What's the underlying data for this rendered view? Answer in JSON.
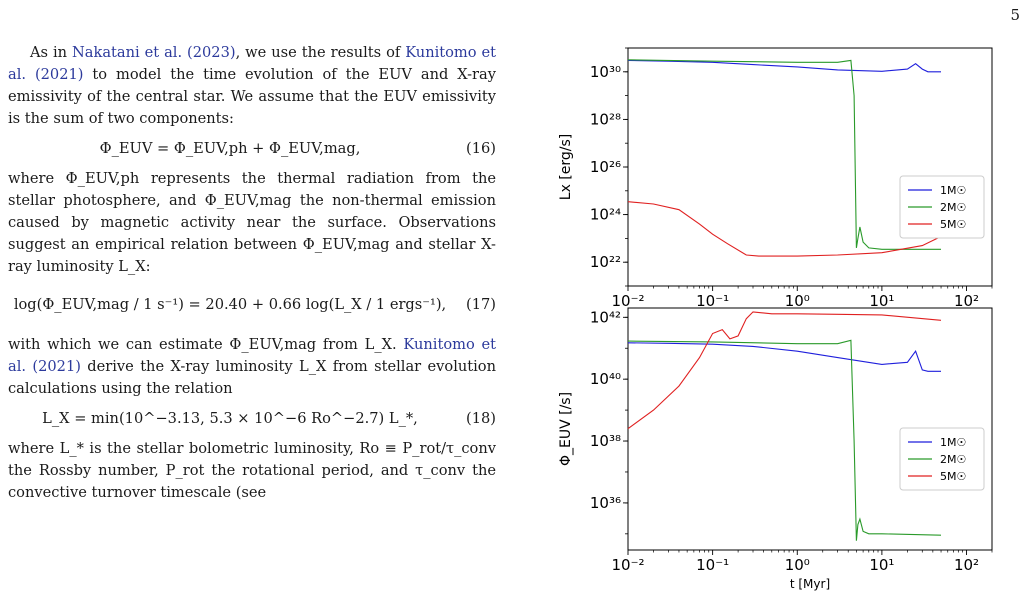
{
  "page_number": "5",
  "text": {
    "p1_a": "As in ",
    "cite_nakatani": "Nakatani et al. (2023)",
    "p1_b": ", we use the results of ",
    "cite_kunitomo": "Kunitomo et al. (2021)",
    "p1_c": " to model the time evolution of the EUV and X-ray emissivity of the central star. We assume that the EUV emissivity is the sum of two components:",
    "eq16": "Φ_EUV = Φ_EUV,ph + Φ_EUV,mag,",
    "eq16_num": "(16)",
    "p2": "where Φ_EUV,ph represents the thermal radiation from the stellar photosphere, and Φ_EUV,mag the non-thermal emission caused by magnetic activity near the surface. Observations suggest an empirical relation between Φ_EUV,mag and stellar X-ray luminosity L_X:",
    "eq17": "log(Φ_EUV,mag / 1 s⁻¹) = 20.40 + 0.66 log(L_X / 1 ergs⁻¹),",
    "eq17_num": "(17)",
    "p3_a": "with which we can estimate Φ_EUV,mag from L_X. ",
    "cite_kunitomo2": "Kunitomo et al. (2021)",
    "p3_b": " derive the X-ray luminosity L_X from stellar evolution calculations using the relation",
    "eq18": "L_X = min(10^−3.13, 5.3 × 10^−6 Ro^−2.7) L_*,",
    "eq18_num": "(18)",
    "p4": "where L_* is the stellar bolometric luminosity, Ro ≡ P_rot/τ_conv the Rossby number, P_rot the rotational period, and τ_conv the convective turnover timescale (see"
  },
  "chart_data": [
    {
      "type": "line",
      "xscale": "log",
      "yscale": "log",
      "xlim": [
        0.01,
        200
      ],
      "ylim": [
        1e+21,
        1e+31
      ],
      "ylabel": "Lx  [erg/s]",
      "xlabel": "",
      "x_ticks": [
        "10⁻²",
        "10⁻¹",
        "10⁰",
        "10¹",
        "10²"
      ],
      "y_ticks": [
        "10²²",
        "10²⁴",
        "10²⁶",
        "10²⁸",
        "10³⁰"
      ],
      "legend": {
        "placement": "right",
        "entries": [
          "1M☉",
          "2M☉",
          "5M☉"
        ]
      },
      "series": [
        {
          "name": "1M☉",
          "color": "#1f1fdc",
          "x": [
            0.01,
            0.03,
            0.1,
            0.3,
            1,
            3,
            10,
            20,
            25,
            30,
            35,
            50
          ],
          "y": [
            3e+30,
            2.8e+30,
            2.5e+30,
            2e+30,
            1.6e+30,
            1.2e+30,
            1.05e+30,
            1.3e+30,
            2.2e+30,
            1.3e+30,
            1e+30,
            1e+30
          ]
        },
        {
          "name": "2M☉",
          "color": "#2a9a2a",
          "x": [
            0.01,
            0.1,
            1,
            3,
            4.3,
            4.7,
            5.0,
            5.2,
            5.5,
            6,
            7,
            10,
            50
          ],
          "y": [
            3.2e+30,
            2.8e+30,
            2.5e+30,
            2.5e+30,
            3e+30,
            1e+29,
            4e+22,
            1e+23,
            3e+23,
            7e+22,
            4e+22,
            3.5e+22,
            3.5e+22
          ]
        },
        {
          "name": "5M☉",
          "color": "#e02020",
          "x": [
            0.01,
            0.02,
            0.04,
            0.07,
            0.1,
            0.15,
            0.25,
            0.35,
            0.5,
            1,
            3,
            10,
            30,
            50
          ],
          "y": [
            3.5e+24,
            2.8e+24,
            1.6e+24,
            4e+23,
            1.5e+23,
            6e+22,
            2e+22,
            1.8e+22,
            1.8e+22,
            1.8e+22,
            2e+22,
            2.5e+22,
            5e+22,
            1.2e+23
          ]
        }
      ]
    },
    {
      "type": "line",
      "xscale": "log",
      "yscale": "log",
      "xlim": [
        0.01,
        200
      ],
      "ylim": [
        3e+34,
        2e+42
      ],
      "ylabel": "Φ_EUV  [/s]",
      "xlabel": "t [Myr]",
      "x_ticks": [
        "10⁻²",
        "10⁻¹",
        "10⁰",
        "10¹",
        "10²"
      ],
      "y_ticks": [
        "10³⁶",
        "10³⁸",
        "10⁴⁰",
        "10⁴²"
      ],
      "legend": {
        "placement": "right",
        "entries": [
          "1M☉",
          "2M☉",
          "5M☉"
        ]
      },
      "series": [
        {
          "name": "1M☉",
          "color": "#1f1fdc",
          "x": [
            0.01,
            0.03,
            0.1,
            0.3,
            1,
            3,
            10,
            20,
            25,
            30,
            35,
            50
          ],
          "y": [
            1.5e+41,
            1.45e+41,
            1.35e+41,
            1.15e+41,
            8e+40,
            5e+40,
            3e+40,
            3.5e+40,
            8e+40,
            2e+40,
            1.8e+40,
            1.8e+40
          ]
        },
        {
          "name": "2M☉",
          "color": "#2a9a2a",
          "x": [
            0.01,
            0.1,
            1,
            3,
            4.3,
            4.7,
            5.0,
            5.2,
            5.5,
            6,
            7,
            10,
            50
          ],
          "y": [
            1.7e+41,
            1.6e+41,
            1.4e+41,
            1.4e+41,
            1.8e+41,
            1e+38,
            6e+34,
            2e+35,
            3e+35,
            1.2e+35,
            1e+35,
            1e+35,
            9e+34
          ]
        },
        {
          "name": "5M☉",
          "color": "#e02020",
          "x": [
            0.01,
            0.02,
            0.04,
            0.07,
            0.1,
            0.13,
            0.16,
            0.2,
            0.25,
            0.3,
            0.5,
            1,
            3,
            10,
            50
          ],
          "y": [
            2.5e+38,
            1e+39,
            6e+39,
            5e+40,
            3e+41,
            4e+41,
            2e+41,
            2.5e+41,
            9e+41,
            1.5e+42,
            1.3e+42,
            1.3e+42,
            1.25e+42,
            1.2e+42,
            8e+41
          ]
        }
      ]
    }
  ]
}
